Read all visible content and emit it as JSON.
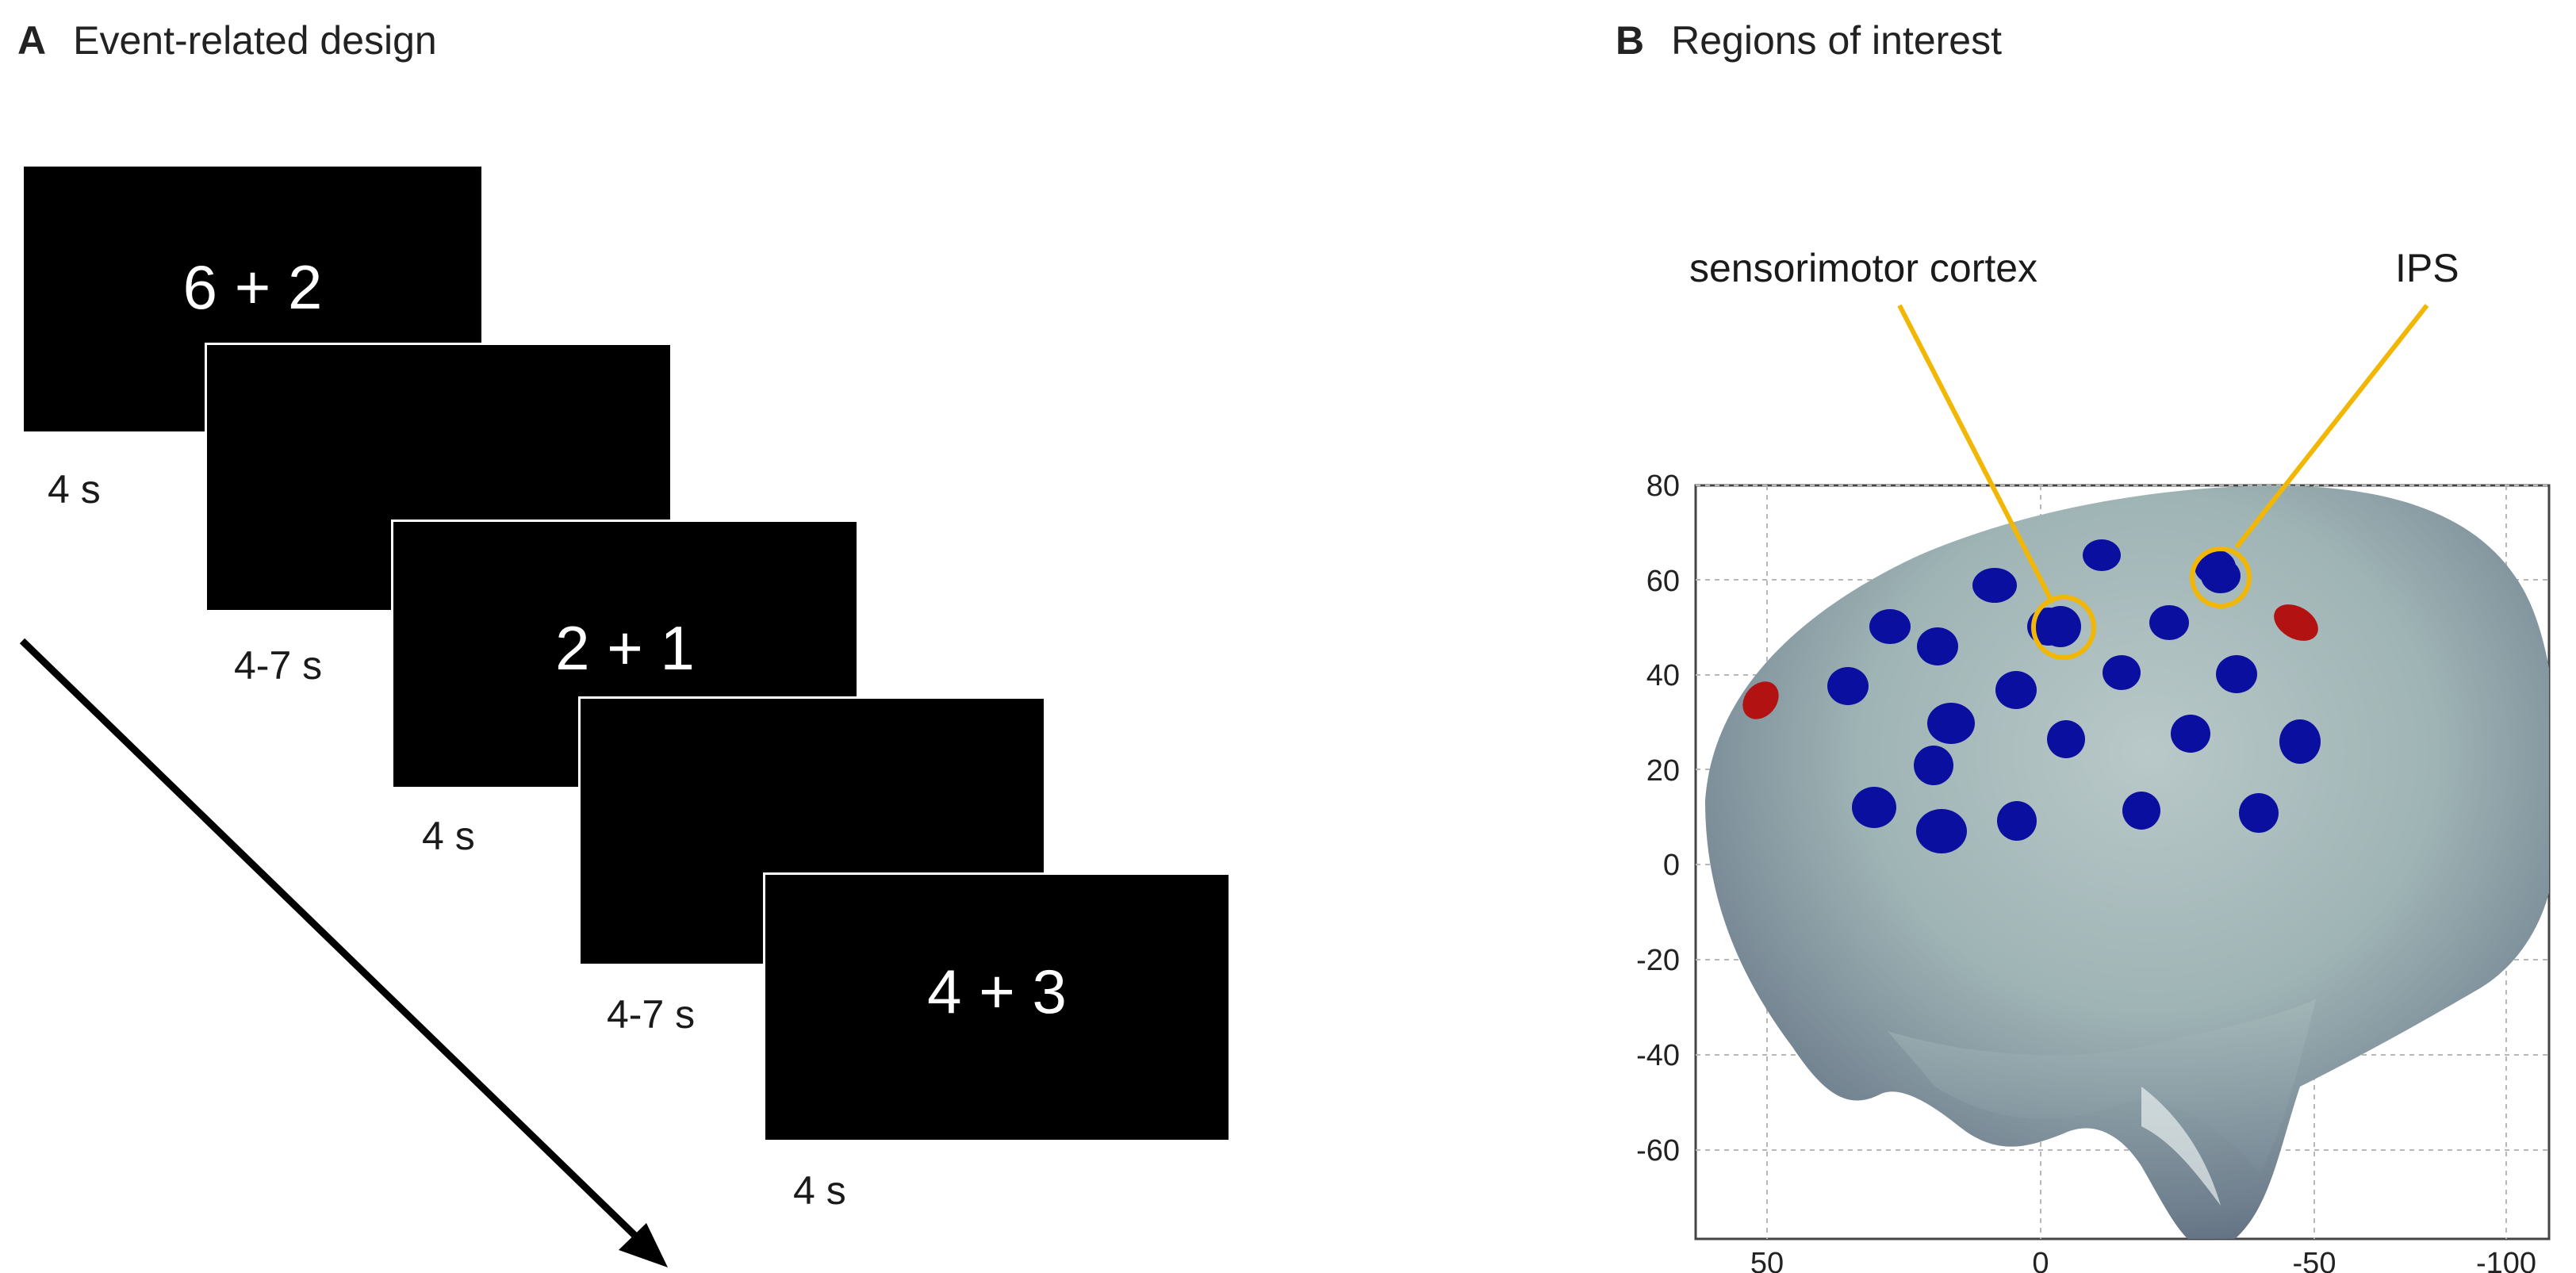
{
  "panel_a": {
    "letter": "A",
    "title": "Event-related design",
    "screens": [
      {
        "text": "6 + 2"
      },
      {
        "text": ""
      },
      {
        "text": "2 + 1"
      },
      {
        "text": ""
      },
      {
        "text": "4 + 3"
      }
    ],
    "durations": [
      "4 s",
      "4-7 s",
      "4 s",
      "4-7 s",
      "4 s"
    ]
  },
  "panel_b": {
    "letter": "B",
    "title": "Regions of interest",
    "callout_left": "sensorimotor cortex",
    "callout_right": "IPS",
    "callout_color": "#f2b705",
    "electrode_color": "#0a0fa0",
    "ref_color": "#b31212",
    "y_ticks": [
      "80",
      "60",
      "40",
      "20",
      "0",
      "-20",
      "-40",
      "-60"
    ],
    "x_ticks": [
      "50",
      "0",
      "-50",
      "-100"
    ]
  }
}
